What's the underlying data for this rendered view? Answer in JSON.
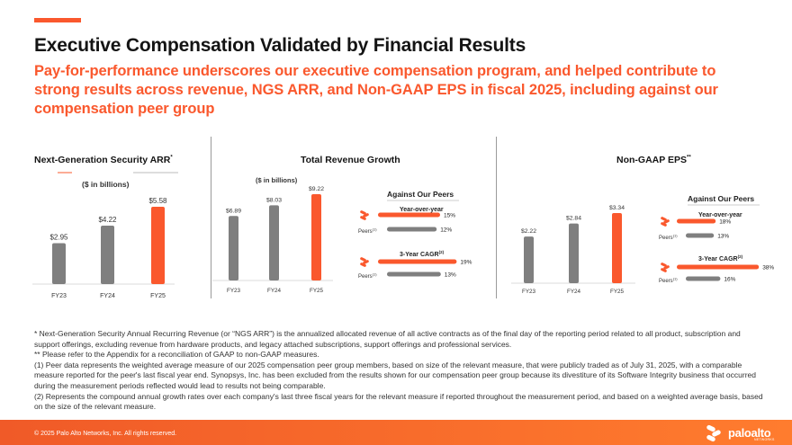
{
  "colors": {
    "accent": "#fa582d",
    "bar_gray": "#7f7f7f",
    "gradient_start": "#f05a28",
    "gradient_end": "#ff7c2e"
  },
  "header": {
    "title": "Executive Compensation Validated by Financial Results",
    "subtitle": "Pay-for-performance underscores our executive compensation program, and helped contribute to strong results across revenue, NGS ARR, and Non-GAAP EPS in fiscal 2025, including against our compensation peer group"
  },
  "panels": {
    "ngs": {
      "label": "Next-Generation Security ARR",
      "marker": "*"
    },
    "revenue": {
      "label": "Total Revenue Growth"
    },
    "eps": {
      "label": "Non-GAAP EPS",
      "marker": "**"
    }
  },
  "chart_data": [
    {
      "type": "bar",
      "title": "Next-Generation Security ARR",
      "ylabel": "($ in billions)",
      "categories": [
        "FY23",
        "FY24",
        "FY25"
      ],
      "values": [
        2.95,
        4.22,
        5.58
      ],
      "labels": [
        "$2.95",
        "$4.22",
        "$5.58"
      ],
      "ylim": [
        0,
        5.58
      ]
    },
    {
      "type": "bar",
      "title": "Total Revenue Growth",
      "ylabel": "($ in billions)",
      "categories": [
        "FY23",
        "FY24",
        "FY25"
      ],
      "values": [
        6.89,
        8.03,
        9.22
      ],
      "labels": [
        "$6.89",
        "$8.03",
        "$9.22"
      ],
      "ylim": [
        0,
        9.22
      ],
      "peers": {
        "title": "Against Our Peers",
        "groups": [
          {
            "name": "Year-over-year",
            "company": 15,
            "peers": 12,
            "company_label": "15%",
            "peers_label": "12%",
            "peers_name": "Peers",
            "peers_note": "(1)"
          },
          {
            "name": "3-Year CAGR",
            "note": "(2)",
            "company": 19,
            "peers": 13,
            "company_label": "19%",
            "peers_label": "13%",
            "peers_name": "Peers",
            "peers_note": "(1)"
          }
        ]
      }
    },
    {
      "type": "bar",
      "title": "Non-GAAP EPS",
      "categories": [
        "FY23",
        "FY24",
        "FY25"
      ],
      "values": [
        2.22,
        2.84,
        3.34
      ],
      "labels": [
        "$2.22",
        "$2.84",
        "$3.34"
      ],
      "ylim": [
        0,
        3.34
      ],
      "peers": {
        "title": "Against Our Peers",
        "groups": [
          {
            "name": "Year-over-year",
            "company": 18,
            "peers": 13,
            "company_label": "18%",
            "peers_label": "13%",
            "peers_name": "Peers",
            "peers_note": "(1)"
          },
          {
            "name": "3-Year CAGR",
            "note": "(2)",
            "company": 38,
            "peers": 16,
            "company_label": "38%",
            "peers_label": "16%",
            "peers_name": "Peers",
            "peers_note": "(1)"
          }
        ]
      }
    }
  ],
  "footnotes": [
    "* Next-Generation Security Annual Recurring Revenue (or “NGS ARR”) is the annualized allocated revenue of all active contracts as of the final day of the reporting period related to all product, subscription and support offerings, excluding revenue from hardware products, and legacy attached subscriptions, support offerings and professional services.",
    "** Please refer to the Appendix for a reconciliation of GAAP to non-GAAP measures.",
    "(1) Peer data represents the weighted average measure of our 2025 compensation peer group members, based on size of the relevant measure, that were publicly traded as of July 31, 2025, with a comparable measure reported for the peer's last fiscal year end. Synopsys, Inc. has been excluded from the results shown for our compensation peer group because its divestiture of its Software Integrity business that occurred during the measurement periods reflected would lead to results not being comparable.",
    "(2) Represents the compound annual growth rates over each company's last three fiscal years for the relevant measure if reported throughout the measurement period, and based on a weighted average basis, based on the size of the relevant measure."
  ],
  "footer": {
    "copyright": "© 2025 Palo Alto Networks, Inc. All rights reserved.",
    "logo_text": "paloalto",
    "logo_sub": "NETWORKS"
  }
}
